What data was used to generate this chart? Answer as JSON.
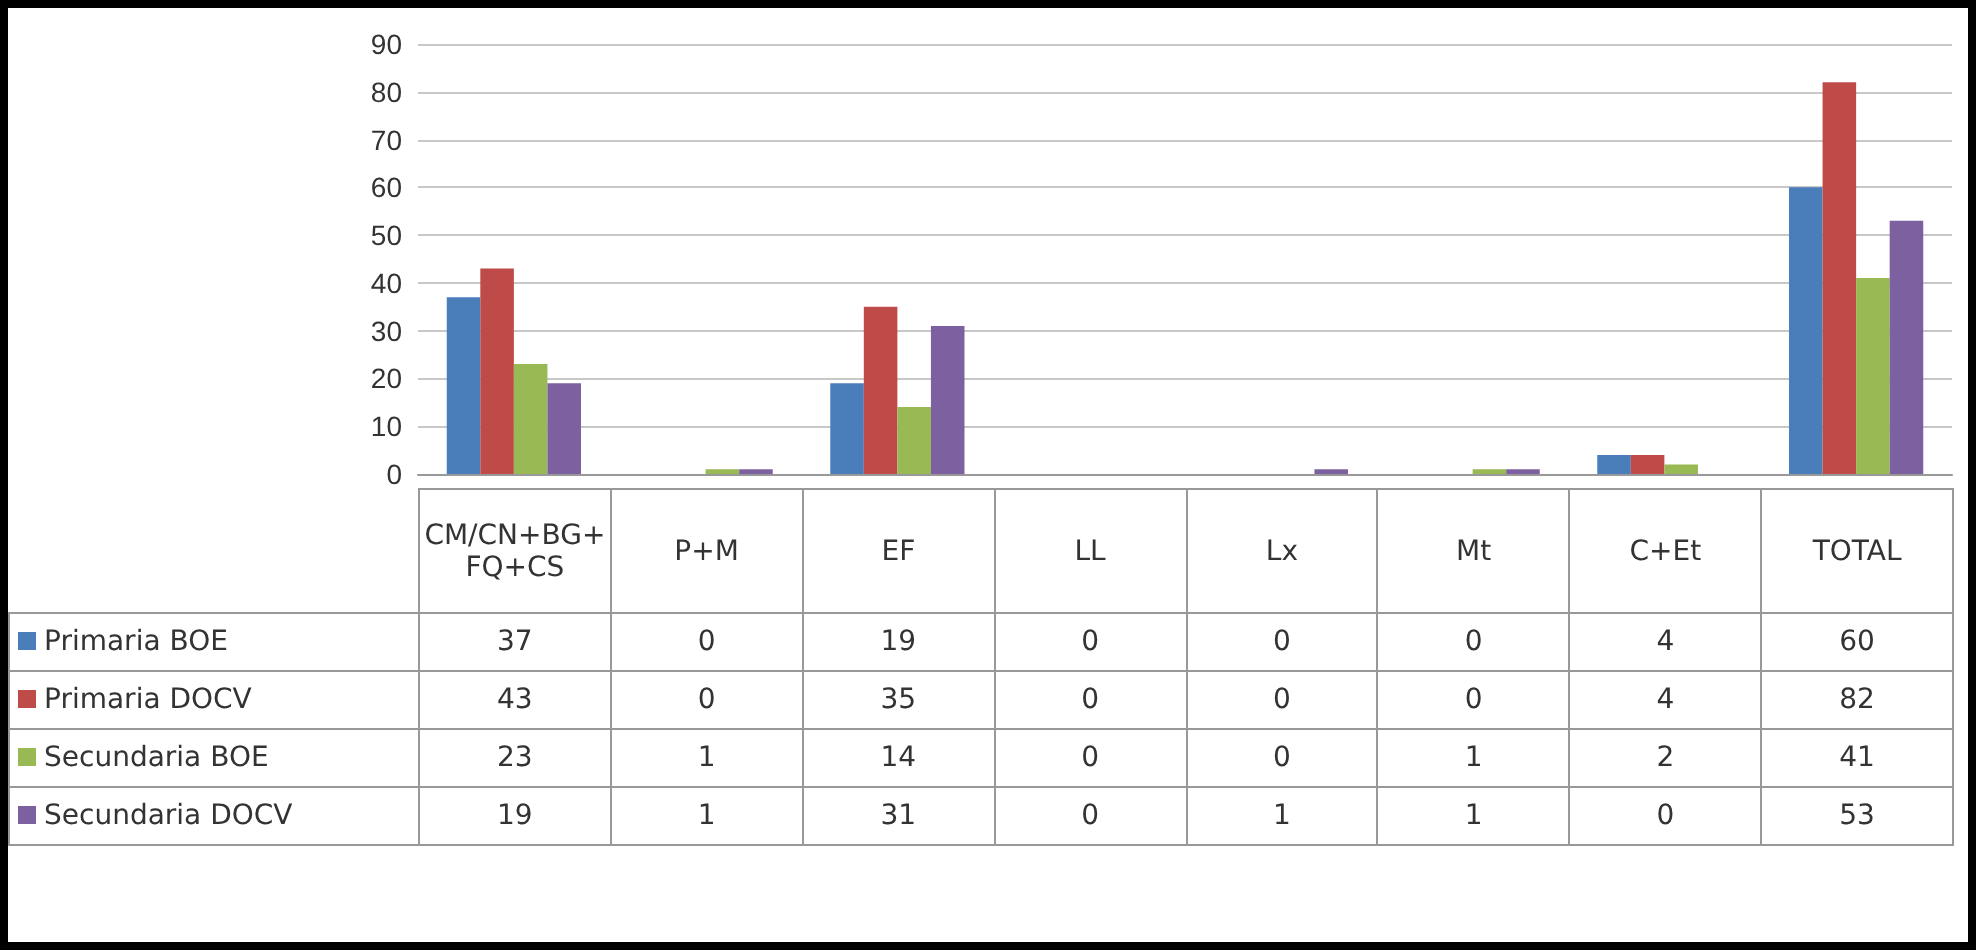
{
  "chart_data": {
    "type": "bar",
    "categories": [
      "CM/CN+BG+FQ+CS",
      "P+M",
      "EF",
      "LL",
      "Lx",
      "Mt",
      "C+Et",
      "TOTAL"
    ],
    "series": [
      {
        "name": "Primaria BOE",
        "color": "#4a7ebb",
        "values": [
          37,
          0,
          19,
          0,
          0,
          0,
          4,
          60
        ]
      },
      {
        "name": "Primaria DOCV",
        "color": "#be4b48",
        "values": [
          43,
          0,
          35,
          0,
          0,
          0,
          4,
          82
        ]
      },
      {
        "name": "Secundaria BOE",
        "color": "#98b954",
        "values": [
          23,
          1,
          14,
          0,
          0,
          1,
          2,
          41
        ]
      },
      {
        "name": "Secundaria DOCV",
        "color": "#7d60a0",
        "values": [
          19,
          1,
          31,
          0,
          1,
          1,
          0,
          53
        ]
      }
    ],
    "ylim": [
      0,
      90
    ],
    "yticks": [
      0,
      10,
      20,
      30,
      40,
      50,
      60,
      70,
      80,
      90
    ],
    "grid": "y",
    "legend": "bottom left",
    "data_labels": true
  }
}
